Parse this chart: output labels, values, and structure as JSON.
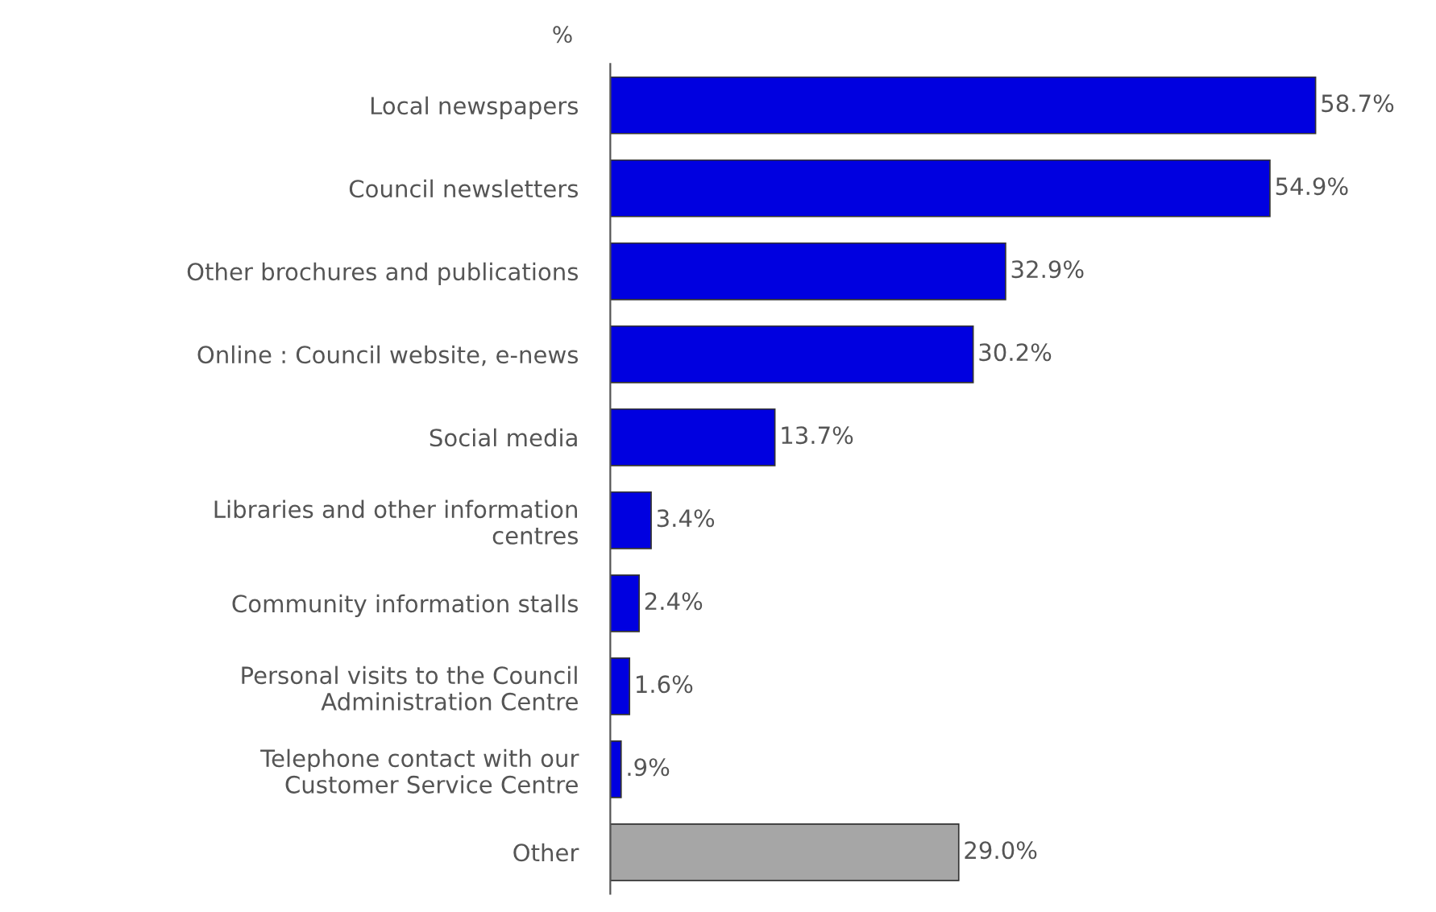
{
  "chart_data": {
    "type": "bar",
    "orientation": "horizontal",
    "ylabel": "%",
    "categories": [
      "Local newspapers",
      "Council newsletters",
      "Other brochures and publications",
      "Online : Council website, e-news",
      "Social media",
      "Libraries and other information\ncentres",
      "Community information stalls",
      "Personal visits to the Council\nAdministration Centre",
      "Telephone contact with our\nCustomer Service Centre",
      "Other"
    ],
    "values": [
      58.7,
      54.9,
      32.9,
      30.2,
      13.7,
      3.4,
      2.4,
      1.6,
      0.9,
      29.0
    ],
    "value_labels": [
      "58.7%",
      "54.9%",
      "32.9%",
      "30.2%",
      "13.7%",
      "3.4%",
      "2.4%",
      "1.6%",
      ".9%",
      "29.0%"
    ],
    "colors": [
      "#0000e0",
      "#0000e0",
      "#0000e0",
      "#0000e0",
      "#0000e0",
      "#0000e0",
      "#0000e0",
      "#0000e0",
      "#0000e0",
      "#a6a6a6"
    ],
    "grid": false,
    "legend": false
  }
}
